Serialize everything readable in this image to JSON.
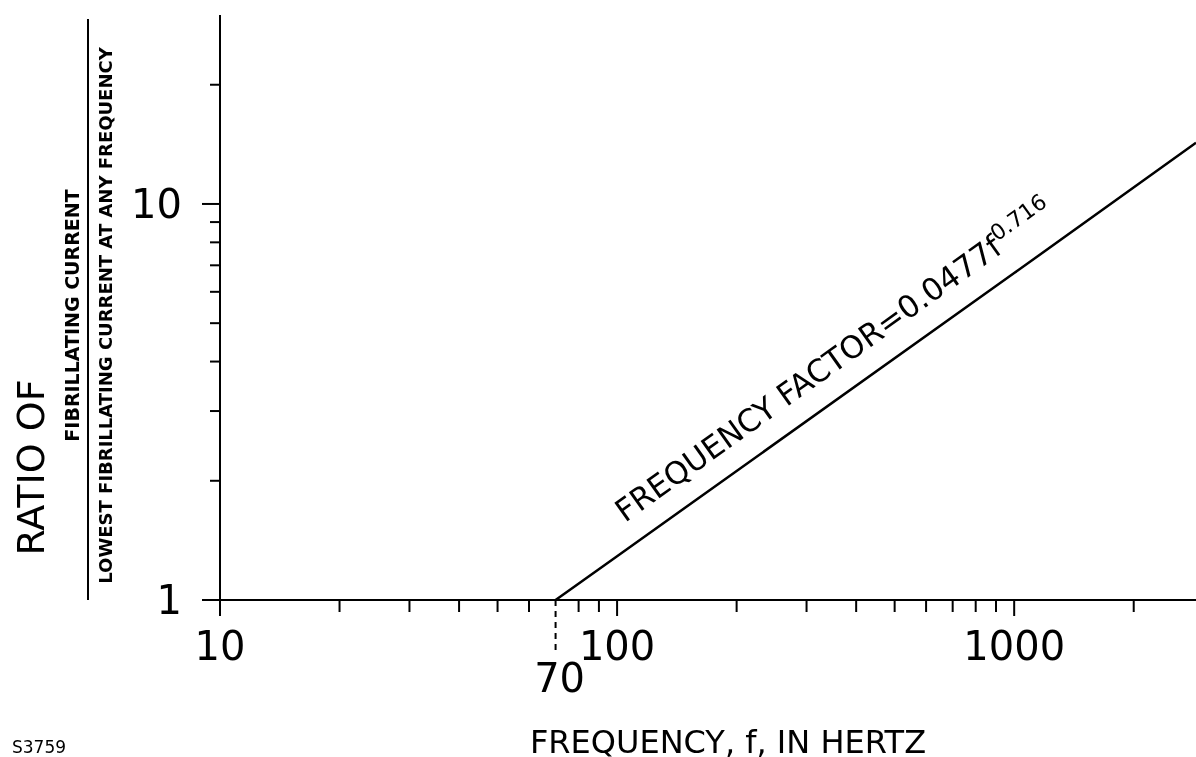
{
  "chart_data": {
    "type": "line",
    "xlabel": "FREQUENCY, f, IN HERTZ",
    "ylabel": "RATIO OF",
    "x": [
      70,
      100,
      1000,
      2870
    ],
    "series": [
      {
        "color": "#000000",
        "values": [
          1,
          1.29,
          6.69,
          14.27
        ]
      }
    ],
    "log": "xy",
    "xlim": [
      10,
      2870
    ],
    "ylim": [
      1,
      30
    ],
    "xticks": [
      10,
      {
        "value": 20,
        "label": null
      },
      {
        "value": 30,
        "label": null
      },
      {
        "value": 40,
        "label": null
      },
      {
        "value": 50,
        "label": null
      },
      {
        "value": 60,
        "label": null
      },
      {
        "value": 80,
        "label": null
      },
      {
        "value": 90,
        "label": null
      },
      100,
      {
        "value": 200,
        "label": null
      },
      {
        "value": 300,
        "label": null
      },
      {
        "value": 400,
        "label": null
      },
      {
        "value": 500,
        "label": null
      },
      {
        "value": 600,
        "label": null
      },
      {
        "value": 700,
        "label": null
      },
      {
        "value": 800,
        "label": null
      },
      {
        "value": 900,
        "label": null
      },
      1000,
      {
        "value": 2000,
        "label": null
      }
    ],
    "yticks": [
      1,
      {
        "value": 2,
        "label": null
      },
      {
        "value": 3,
        "label": null
      },
      {
        "value": 4,
        "label": null
      },
      {
        "value": 5,
        "label": null
      },
      {
        "value": 6,
        "label": null
      },
      {
        "value": 7,
        "label": null
      },
      {
        "value": 8,
        "label": null
      },
      {
        "value": 9,
        "label": null
      },
      10,
      {
        "value": 20,
        "label": null
      }
    ],
    "ref_lines": [
      {
        "axis": "x",
        "value": 70,
        "label": "70",
        "line_style": "dashed"
      }
    ],
    "grid": false,
    "legend": false,
    "marker": "none",
    "line_style": "solid",
    "annotations": [
      "FIBRILLATING CURRENT",
      "LOWEST FIBRILLATING CURRENT AT ANY FREQUENCY",
      "S3759",
      "FREQUENCY FACTOR=0.0477f$^{0.716}$"
    ]
  }
}
